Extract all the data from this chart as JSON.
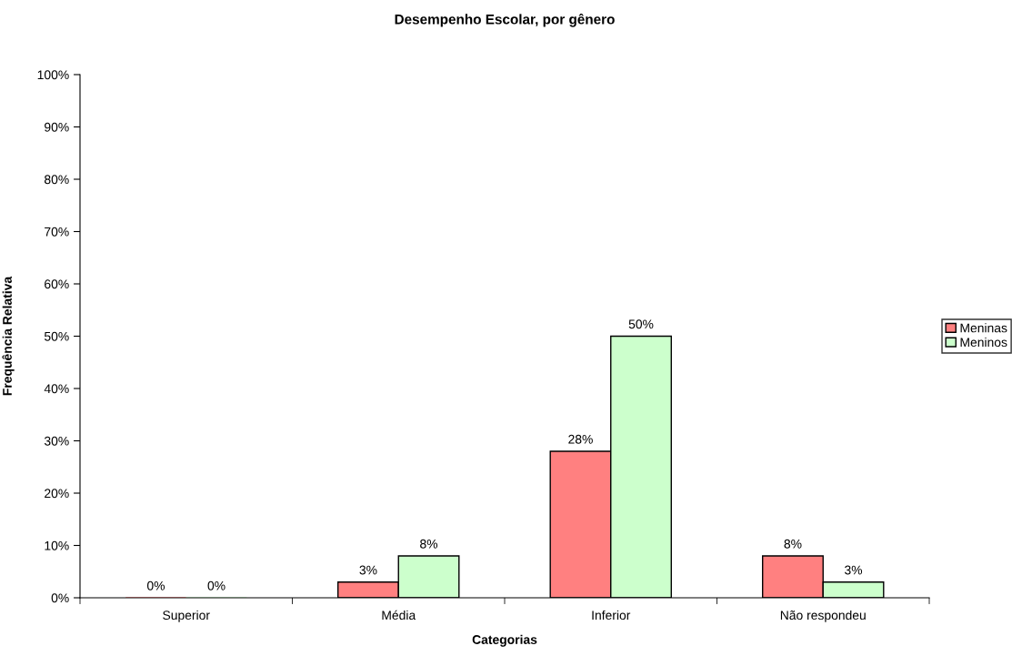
{
  "chart_data": {
    "type": "bar",
    "title": "Desempenho Escolar, por gênero",
    "xlabel": "Categorias",
    "ylabel": "Frequência Relativa",
    "categories": [
      "Superior",
      "Média",
      "Inferior",
      "Não respondeu"
    ],
    "series": [
      {
        "name": "Meninas",
        "color": "#ff8080",
        "values": [
          0,
          3,
          28,
          8
        ],
        "value_labels": [
          "0%",
          "3%",
          "28%",
          "8%"
        ]
      },
      {
        "name": "Meninos",
        "color": "#ccffcc",
        "values": [
          0,
          8,
          50,
          3
        ],
        "value_labels": [
          "0%",
          "8%",
          "50%",
          "3%"
        ]
      }
    ],
    "ylim": [
      0,
      100
    ],
    "yticks": [
      {
        "value": 0,
        "label": "0%"
      },
      {
        "value": 10,
        "label": "10%"
      },
      {
        "value": 20,
        "label": "20%"
      },
      {
        "value": 30,
        "label": "30%"
      },
      {
        "value": 40,
        "label": "40%"
      },
      {
        "value": 50,
        "label": "50%"
      },
      {
        "value": 60,
        "label": "60%"
      },
      {
        "value": 70,
        "label": "70%"
      },
      {
        "value": 80,
        "label": "80%"
      },
      {
        "value": 90,
        "label": "90%"
      },
      {
        "value": 100,
        "label": "100%"
      }
    ],
    "grid": false,
    "legend": "right"
  }
}
